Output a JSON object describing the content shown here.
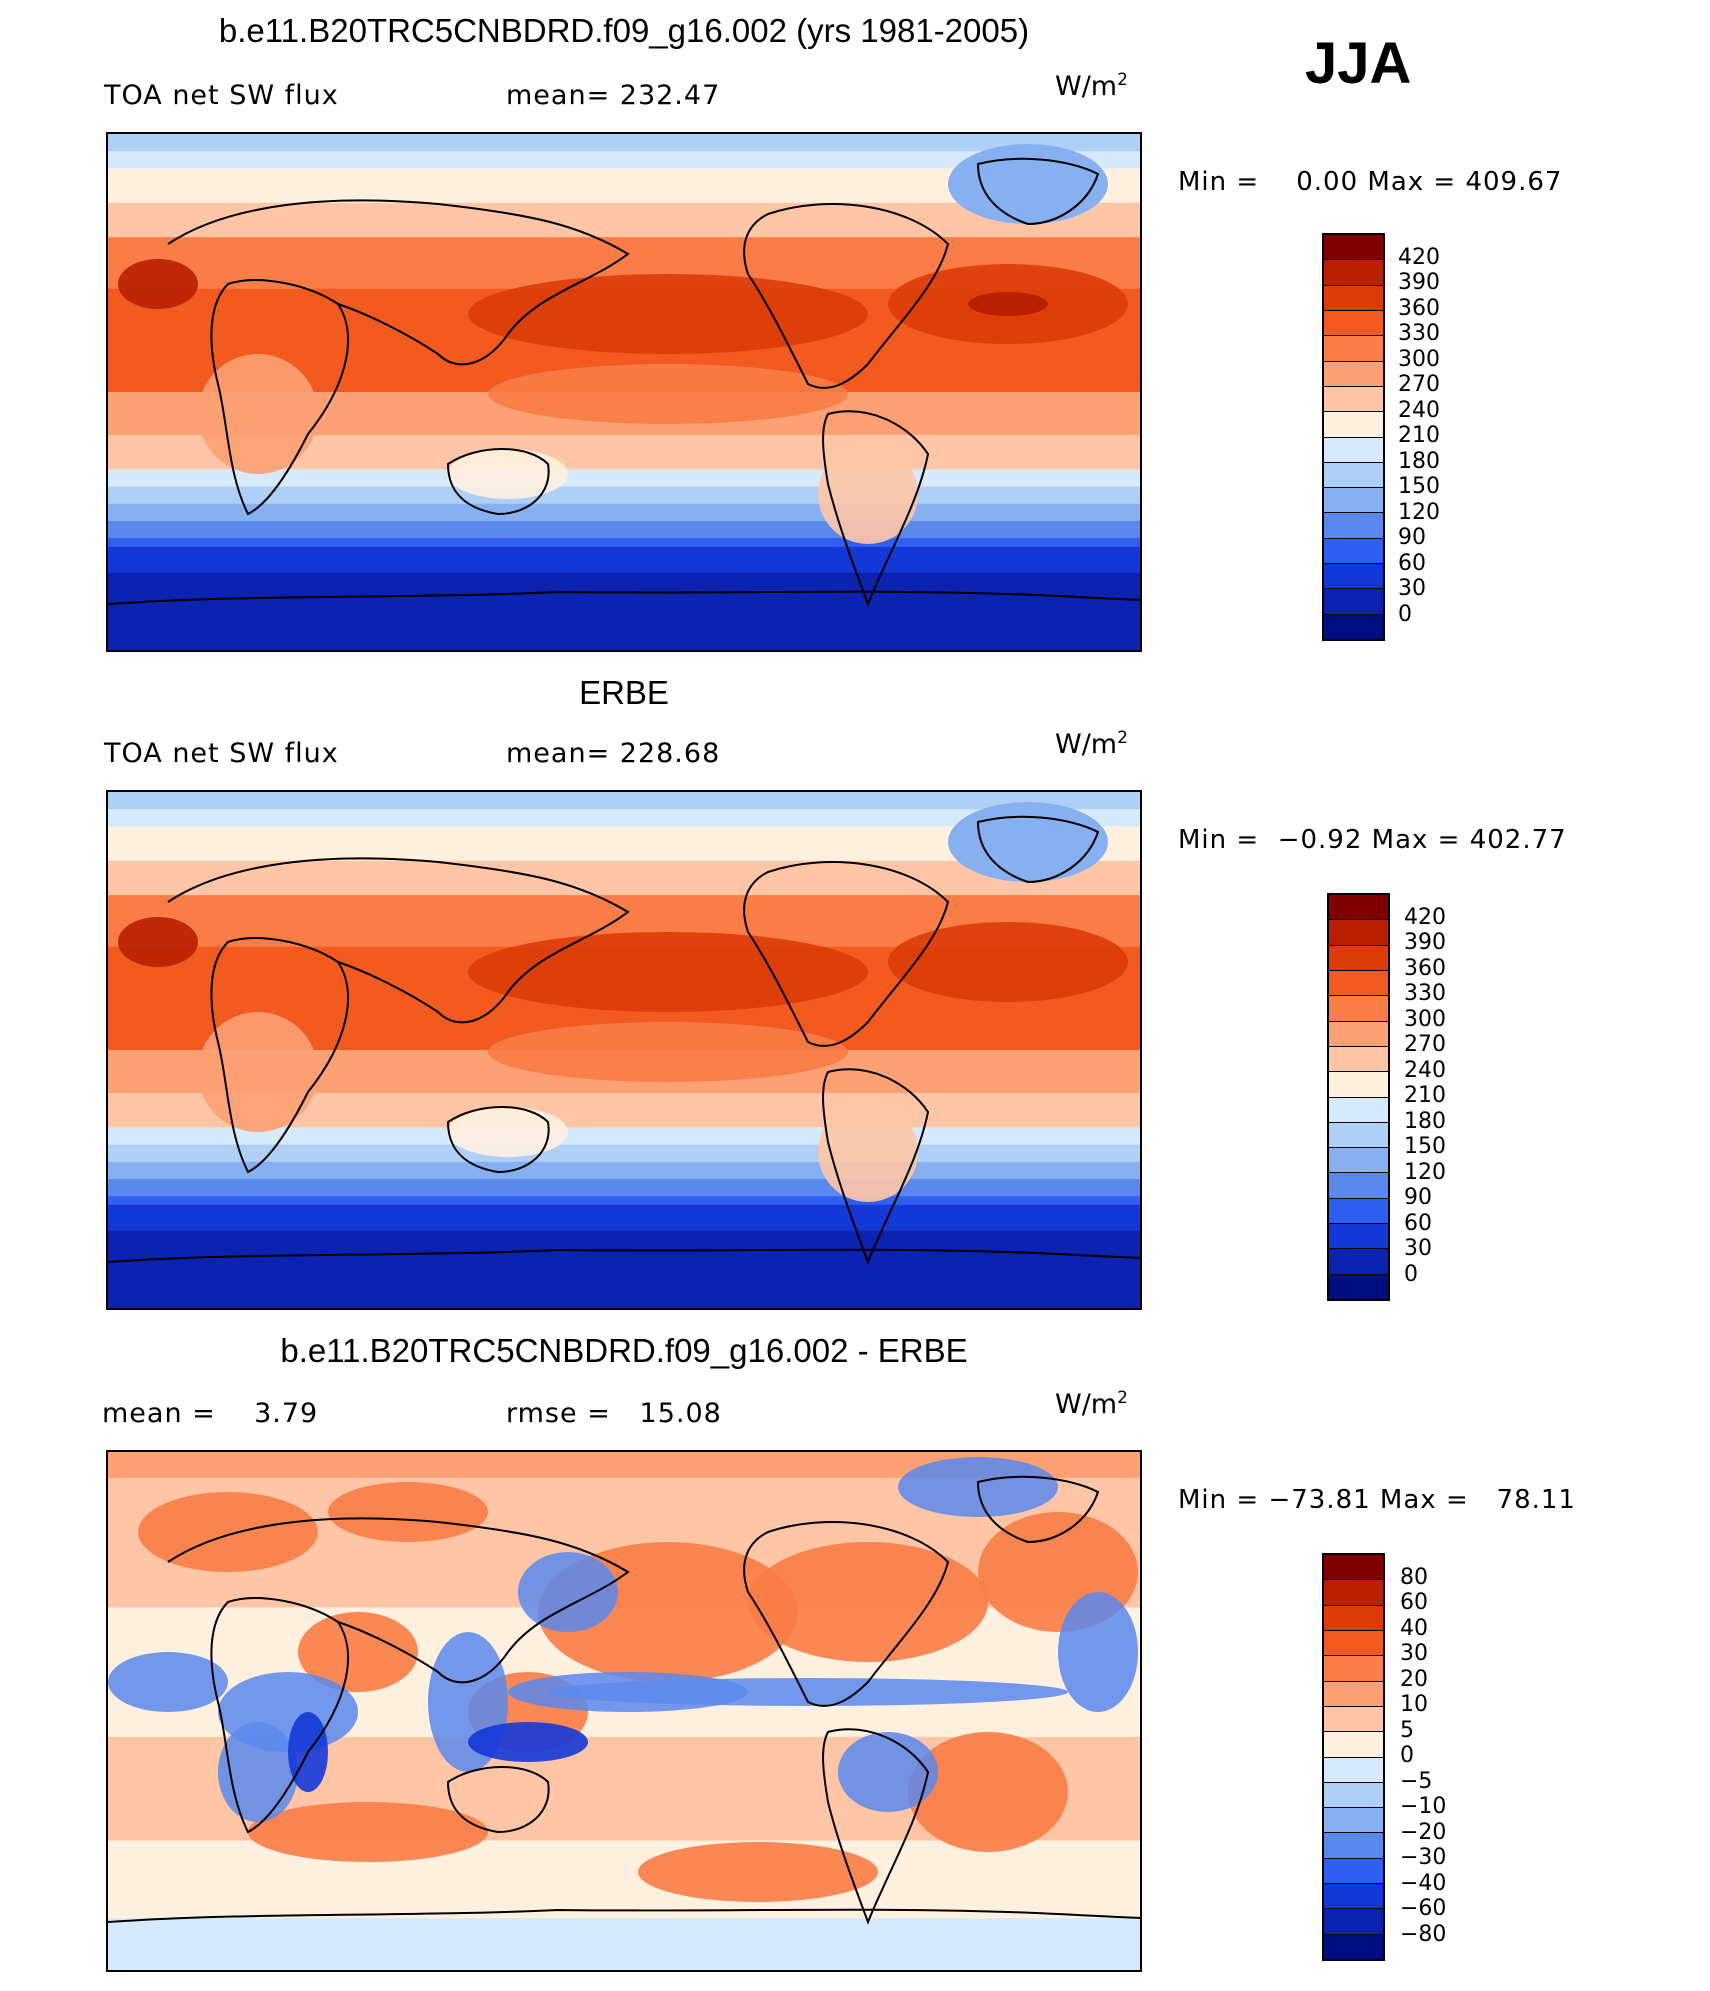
{
  "season": "JJA",
  "units_text": "W/m",
  "units_sup": "2",
  "panels": [
    {
      "title": "b.e11.B20TRC5CNBDRD.f09_g16.002 (yrs 1981-2005)",
      "left_label": "TOA net SW flux",
      "right_label": "mean= 232.47",
      "minmax": "Min =    0.00 Max = 409.67",
      "cbar_labels": [
        "420",
        "390",
        "360",
        "330",
        "300",
        "270",
        "240",
        "210",
        "180",
        "150",
        "120",
        "90",
        "60",
        "30",
        "0"
      ],
      "field": "model"
    },
    {
      "title": "ERBE",
      "left_label": "TOA net SW flux",
      "right_label": "mean= 228.68",
      "minmax": "Min =  −0.92 Max = 402.77",
      "cbar_labels": [
        "420",
        "390",
        "360",
        "330",
        "300",
        "270",
        "240",
        "210",
        "180",
        "150",
        "120",
        "90",
        "60",
        "30",
        "0"
      ],
      "field": "obs"
    },
    {
      "title": "b.e11.B20TRC5CNBDRD.f09_g16.002 - ERBE",
      "left_label": "mean =    3.79",
      "right_label": "rmse =   15.08",
      "minmax": "Min = −73.81 Max =   78.11",
      "cbar_labels": [
        "80",
        "60",
        "40",
        "30",
        "20",
        "10",
        "5",
        "0",
        "−5",
        "−10",
        "−20",
        "−30",
        "−40",
        "−60",
        "−80"
      ],
      "field": "diff"
    }
  ],
  "colors": {
    "palette": [
      "#800000",
      "#b82000",
      "#dc3c08",
      "#f25a20",
      "#fa7c46",
      "#fda074",
      "#fec6a6",
      "#fff0e0",
      "#d6eafb",
      "#afd0f6",
      "#86b0f0",
      "#5a88ec",
      "#2f5ff0",
      "#1438d8",
      "#0c22b0",
      "#000f80"
    ]
  }
}
